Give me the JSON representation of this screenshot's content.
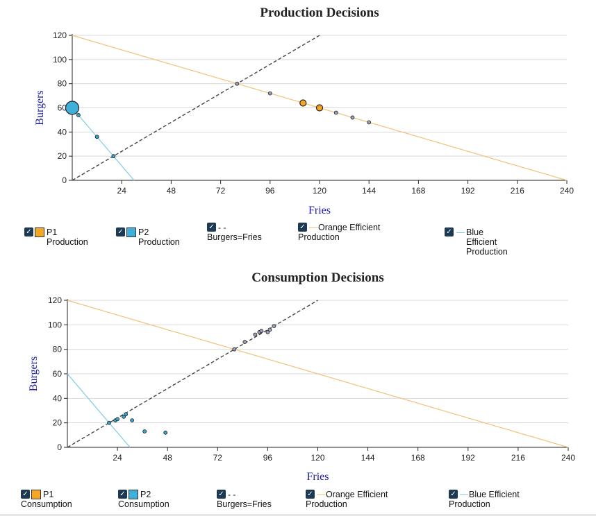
{
  "colors": {
    "orange": "#f5a623",
    "orange_line": "#f3c178",
    "blue": "#3fb0d9",
    "blue_line": "#7fcbe3",
    "dashed": "#444444",
    "checkbox": "#1d3a52"
  },
  "chart_data": [
    {
      "type": "scatter",
      "title": "Production Decisions",
      "xlabel": "Fries",
      "ylabel": "Burgers",
      "xlim": [
        0,
        240
      ],
      "ylim": [
        0,
        120
      ],
      "xticks": [
        24,
        48,
        72,
        96,
        120,
        144,
        168,
        192,
        216,
        240
      ],
      "yticks": [
        0,
        20,
        40,
        60,
        80,
        100,
        120
      ],
      "lines": [
        {
          "name": "Burgers=Fries",
          "points": [
            [
              0,
              0
            ],
            [
              120,
              120
            ]
          ],
          "style": "dashed"
        },
        {
          "name": "Orange Efficient Production",
          "points": [
            [
              0,
              120
            ],
            [
              240,
              0
            ]
          ],
          "color": "orange"
        },
        {
          "name": "Blue Efficient Production",
          "points": [
            [
              0,
              60
            ],
            [
              30,
              0
            ]
          ],
          "color": "blue"
        }
      ],
      "series": [
        {
          "name": "P1 Production",
          "color": "orange",
          "points": [
            [
              80,
              80
            ],
            [
              96,
              72
            ],
            [
              112,
              64
            ],
            [
              120,
              60
            ],
            [
              128,
              56
            ],
            [
              136,
              52
            ],
            [
              144,
              48
            ]
          ],
          "highlight": [
            [
              112,
              64
            ],
            [
              120,
              60
            ]
          ]
        },
        {
          "name": "P2 Production",
          "color": "blue",
          "points": [
            [
              0,
              60
            ],
            [
              3,
              54
            ],
            [
              12,
              36
            ],
            [
              20,
              20
            ]
          ],
          "highlight": [
            [
              0,
              60
            ]
          ]
        }
      ]
    },
    {
      "type": "scatter",
      "title": "Consumption Decisions",
      "xlabel": "Fries",
      "ylabel": "Burgers",
      "xlim": [
        0,
        240
      ],
      "ylim": [
        0,
        120
      ],
      "xticks": [
        24,
        48,
        72,
        96,
        120,
        144,
        168,
        192,
        216,
        240
      ],
      "yticks": [
        0,
        20,
        40,
        60,
        80,
        100,
        120
      ],
      "lines": [
        {
          "name": "Burgers=Fries",
          "points": [
            [
              0,
              0
            ],
            [
              120,
              120
            ]
          ],
          "style": "dashed"
        },
        {
          "name": "Orange Efficient Production",
          "points": [
            [
              0,
              120
            ],
            [
              240,
              0
            ]
          ],
          "color": "orange"
        },
        {
          "name": "Blue Efficient Production",
          "points": [
            [
              0,
              60
            ],
            [
              30,
              0
            ]
          ],
          "color": "blue"
        }
      ],
      "series": [
        {
          "name": "P1 Consumption",
          "color": "orange",
          "points": [
            [
              80,
              80
            ],
            [
              85,
              86
            ],
            [
              90,
              92
            ],
            [
              92,
              94
            ],
            [
              93,
              95
            ],
            [
              96,
              94
            ],
            [
              97,
              96
            ],
            [
              99,
              99
            ]
          ]
        },
        {
          "name": "P2 Consumption",
          "color": "blue",
          "points": [
            [
              20,
              20
            ],
            [
              23,
              22
            ],
            [
              24,
              23
            ],
            [
              27,
              25
            ],
            [
              28,
              27
            ],
            [
              31,
              22
            ],
            [
              37,
              13
            ],
            [
              47,
              12
            ]
          ]
        }
      ]
    }
  ],
  "legend_top": [
    {
      "label": "P1 Production",
      "kind": "swatch",
      "color": "orange"
    },
    {
      "label": "P2 Production",
      "kind": "swatch",
      "color": "blue"
    },
    {
      "label": "Burgers=Fries",
      "kind": "dashes"
    },
    {
      "label": "Orange Efficient Production",
      "kind": "line",
      "color": "orange"
    },
    {
      "label": "Blue Efficient Production",
      "kind": "line",
      "color": "blue"
    }
  ],
  "legend_bottom": [
    {
      "label": "P1 Consumption",
      "kind": "swatch",
      "color": "orange"
    },
    {
      "label": "P2 Consumption",
      "kind": "swatch",
      "color": "blue"
    },
    {
      "label": "Burgers=Fries",
      "kind": "dashes"
    },
    {
      "label": "Orange Efficient Production",
      "kind": "line",
      "color": "orange"
    },
    {
      "label": "Blue Efficient Production",
      "kind": "line",
      "color": "blue"
    }
  ],
  "checkmark": "✓",
  "dashes_glyph": "- -"
}
